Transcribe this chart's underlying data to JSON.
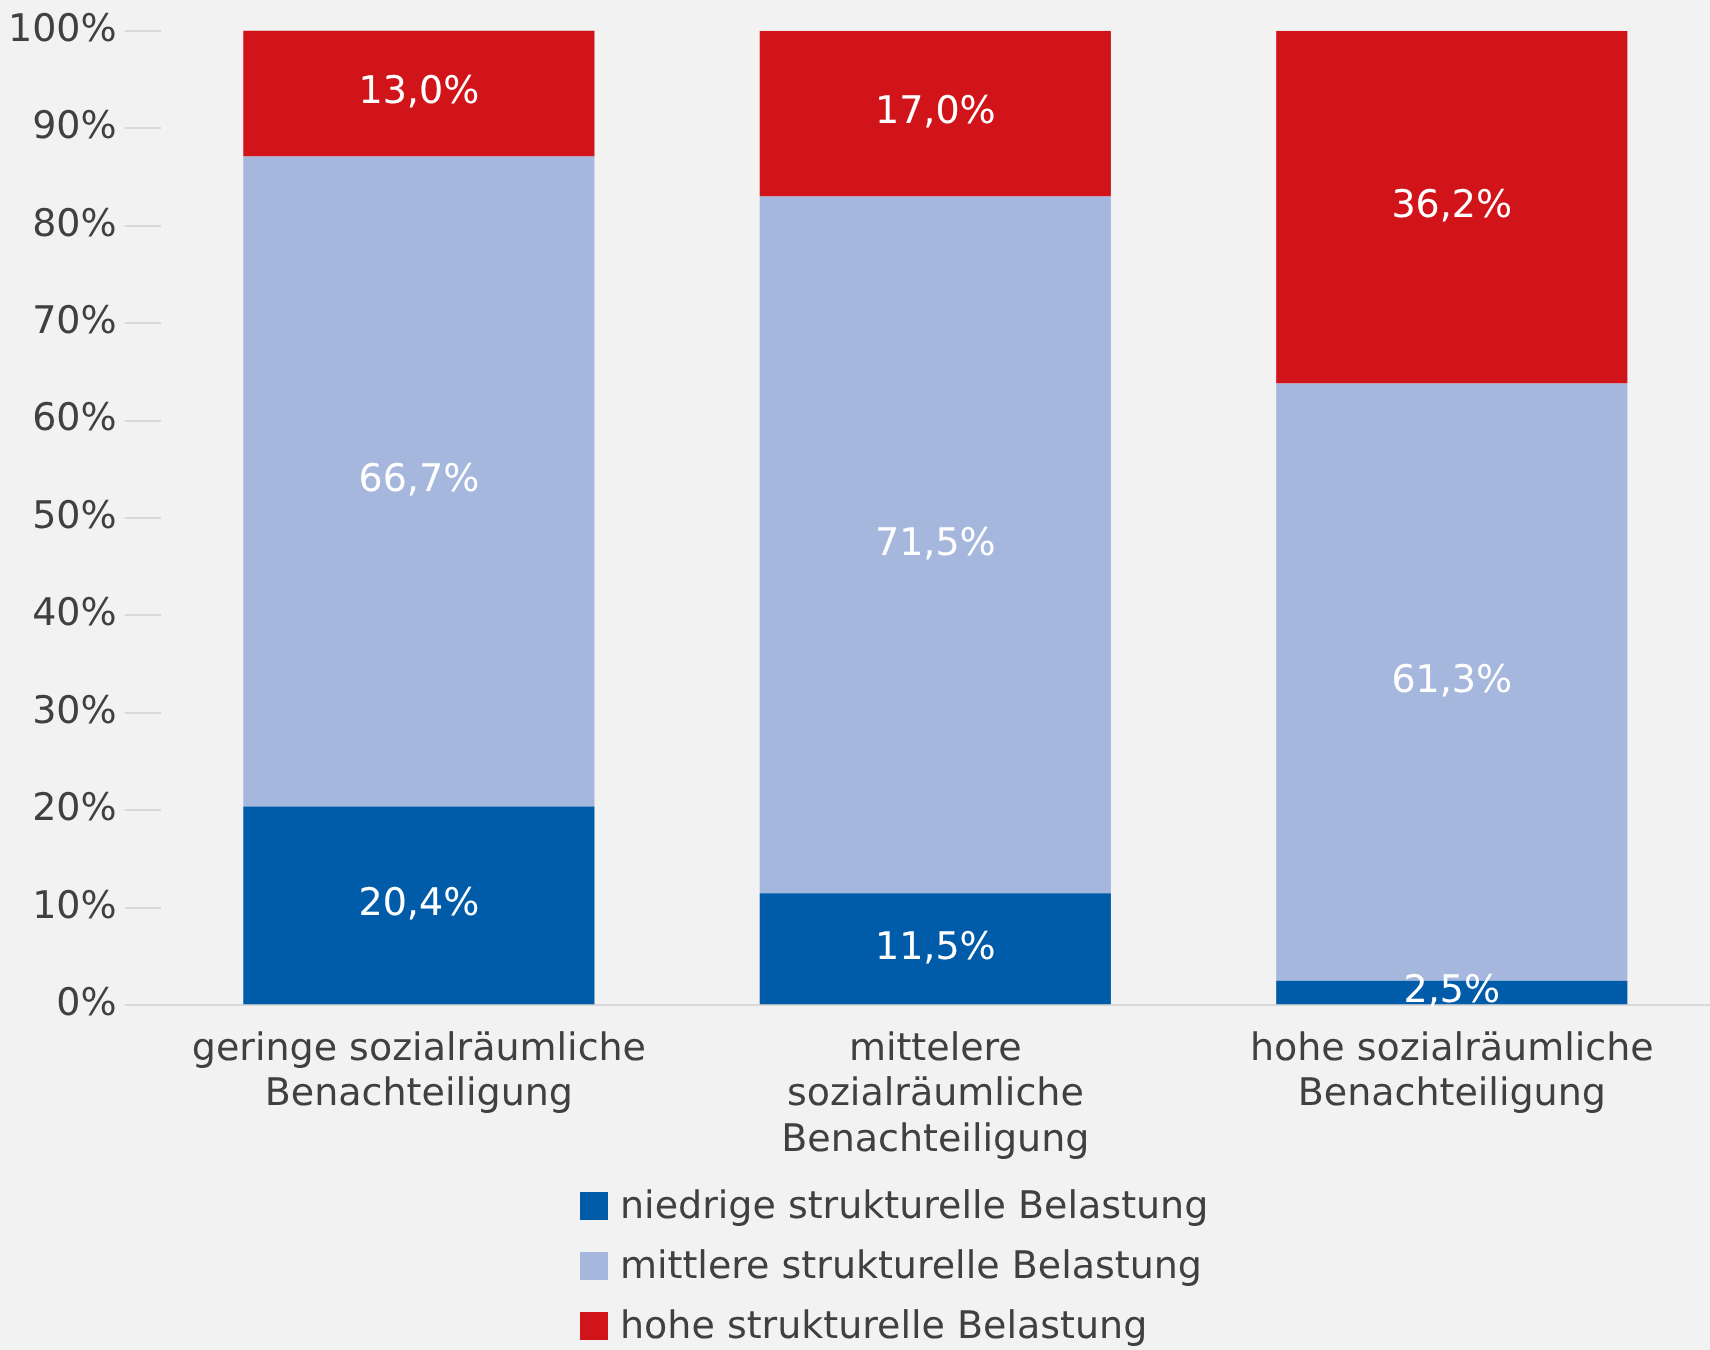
{
  "chart_data": {
    "type": "bar",
    "stacked": true,
    "categories": [
      "geringe sozialräumliche Benachteiligung",
      "mittelere sozialräumliche Benachteiligung",
      "hohe sozialräumliche Benachteiligung"
    ],
    "series": [
      {
        "name": "niedrige strukturelle Belastung",
        "color": "#005ca9",
        "values": [
          20.4,
          11.5,
          2.5
        ],
        "value_labels": [
          "20,4%",
          "11,5%",
          "2,5%"
        ]
      },
      {
        "name": "mittlere strukturelle Belastung",
        "color": "#a6b7de",
        "values": [
          66.7,
          71.5,
          61.3
        ],
        "value_labels": [
          "66,7%",
          "71,5%",
          "61,3%"
        ]
      },
      {
        "name": "hohe strukturelle Belastung",
        "color": "#d0141a",
        "values": [
          13.0,
          17.0,
          36.2
        ],
        "value_labels": [
          "13,0%",
          "17,0%",
          "36,2%"
        ]
      }
    ],
    "ylim": [
      0,
      100
    ],
    "yticks": [
      {
        "value": 0,
        "label": "0%"
      },
      {
        "value": 10,
        "label": "10%"
      },
      {
        "value": 20,
        "label": "20%"
      },
      {
        "value": 30,
        "label": "30%"
      },
      {
        "value": 40,
        "label": "40%"
      },
      {
        "value": 50,
        "label": "50%"
      },
      {
        "value": 60,
        "label": "60%"
      },
      {
        "value": 70,
        "label": "70%"
      },
      {
        "value": 80,
        "label": "80%"
      },
      {
        "value": 90,
        "label": "90%"
      },
      {
        "value": 100,
        "label": "100%"
      }
    ],
    "grid": false,
    "legend": "bottom"
  }
}
